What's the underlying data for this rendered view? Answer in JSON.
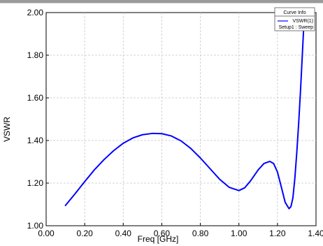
{
  "chart_data": {
    "type": "line",
    "title": "",
    "xlabel": "Freq [GHz]",
    "ylabel": "VSWR",
    "xlim": [
      0.0,
      1.4
    ],
    "ylim": [
      1.0,
      2.0
    ],
    "x_ticks": [
      "0.00",
      "0.20",
      "0.40",
      "0.60",
      "0.80",
      "1.00",
      "1.20",
      "1.40"
    ],
    "y_ticks": [
      "1.00",
      "1.20",
      "1.40",
      "1.60",
      "1.80",
      "2.00"
    ],
    "grid": true,
    "legend": {
      "title": "Curve Info",
      "position": "top-right",
      "entries": [
        {
          "name": "VSWR(1)",
          "setup": "Setup1 : Sweep"
        }
      ]
    },
    "series": [
      {
        "name": "VSWR(1)",
        "color": "#0000ff",
        "x": [
          0.1,
          0.15,
          0.2,
          0.25,
          0.3,
          0.35,
          0.4,
          0.45,
          0.5,
          0.55,
          0.6,
          0.65,
          0.7,
          0.75,
          0.8,
          0.85,
          0.9,
          0.95,
          1.0,
          1.03,
          1.06,
          1.1,
          1.13,
          1.16,
          1.18,
          1.2,
          1.22,
          1.24,
          1.26,
          1.27,
          1.28,
          1.29,
          1.3,
          1.31,
          1.32,
          1.33,
          1.34
        ],
        "y": [
          1.095,
          1.15,
          1.207,
          1.262,
          1.31,
          1.352,
          1.387,
          1.412,
          1.427,
          1.433,
          1.432,
          1.421,
          1.398,
          1.363,
          1.318,
          1.268,
          1.218,
          1.18,
          1.165,
          1.178,
          1.21,
          1.262,
          1.292,
          1.302,
          1.292,
          1.252,
          1.182,
          1.11,
          1.08,
          1.09,
          1.13,
          1.22,
          1.34,
          1.48,
          1.64,
          1.82,
          2.0
        ]
      }
    ]
  }
}
